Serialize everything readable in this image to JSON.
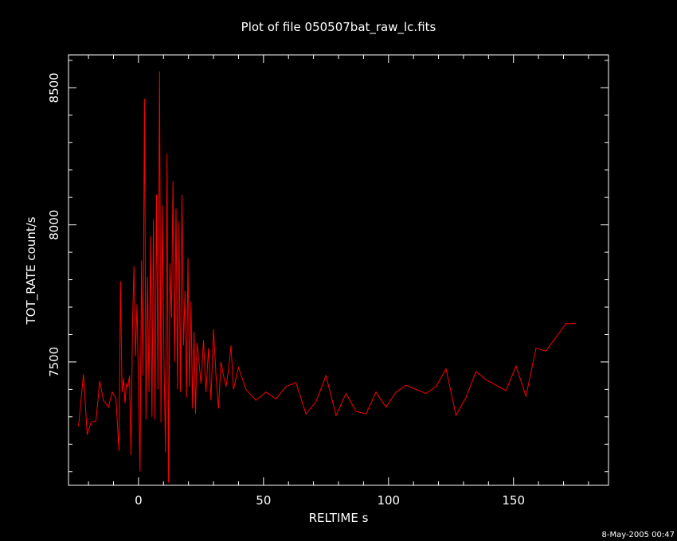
{
  "chart_data": {
    "type": "line",
    "title": "Plot of file 050507bat_raw_lc.fits",
    "xlabel": "RELTIME   s",
    "ylabel": "TOT_RATE   count/s",
    "footer": "8-May-2005 00:47",
    "xlim": [
      -28,
      188
    ],
    "ylim": [
      7050,
      8620
    ],
    "xticks_major": [
      0,
      50,
      100,
      150
    ],
    "xticks_major_labels": [
      "0",
      "50",
      "100",
      "150"
    ],
    "xticks_minor_step": 10,
    "yticks_major": [
      7500,
      8000,
      8500
    ],
    "yticks_major_labels": [
      "7500",
      "8000",
      "8500"
    ],
    "yticks_minor_step": 100,
    "grid": false,
    "legend": "none",
    "colors": {
      "background": "#000000",
      "axes": "#ffffff",
      "series": "#ff0000"
    },
    "series": [
      {
        "x": [
          -24,
          -22,
          -20.5,
          -19,
          -17,
          -15.5,
          -14,
          -12,
          -10.5,
          -9,
          -7.8,
          -7.2,
          -6.6,
          -6,
          -5.4,
          -4.8,
          -4.2,
          -3.6,
          -3,
          -2.4,
          -1.8,
          -1.2,
          -0.6,
          0,
          0.6,
          1.2,
          1.8,
          2.4,
          3,
          3.6,
          4.2,
          4.8,
          5.4,
          6,
          6.6,
          7.2,
          7.8,
          8.4,
          9,
          9.6,
          10.2,
          10.8,
          11.4,
          12,
          12.6,
          13.2,
          13.8,
          14.4,
          15,
          15.6,
          16.2,
          16.8,
          17.4,
          18,
          18.6,
          19.2,
          19.8,
          20.4,
          21,
          21.6,
          22.2,
          22.8,
          23.4,
          24,
          25,
          26,
          27,
          28,
          29,
          30,
          31,
          32,
          33,
          34,
          35,
          36,
          37,
          38,
          40,
          43,
          47,
          51,
          55,
          59,
          63,
          67,
          71,
          75,
          79,
          83,
          87,
          91,
          95,
          99,
          103,
          107,
          111,
          115,
          119,
          123,
          127,
          131,
          135,
          139,
          143,
          147,
          151,
          155,
          159,
          163,
          167,
          171,
          175
        ],
        "y": [
          7265,
          7455,
          7235,
          7280,
          7285,
          7430,
          7360,
          7335,
          7390,
          7365,
          7175,
          7795,
          7390,
          7440,
          7350,
          7420,
          7410,
          7450,
          7160,
          7640,
          7850,
          7520,
          7710,
          7410,
          7100,
          7870,
          7450,
          8460,
          7290,
          7810,
          7390,
          7960,
          7300,
          8020,
          7290,
          8110,
          7400,
          8560,
          7280,
          8070,
          7500,
          7170,
          8260,
          7060,
          7860,
          7660,
          8160,
          7500,
          8060,
          7400,
          8010,
          7390,
          8110,
          7560,
          7760,
          7370,
          7880,
          7410,
          7720,
          7330,
          7610,
          7310,
          7570,
          7520,
          7420,
          7580,
          7390,
          7550,
          7360,
          7620,
          7450,
          7330,
          7500,
          7450,
          7410,
          7470,
          7560,
          7400,
          7480,
          7400,
          7360,
          7390,
          7365,
          7410,
          7425,
          7310,
          7355,
          7450,
          7305,
          7385,
          7320,
          7310,
          7390,
          7335,
          7390,
          7415,
          7400,
          7385,
          7410,
          7475,
          7305,
          7370,
          7465,
          7435,
          7415,
          7395,
          7485,
          7375,
          7550,
          7540,
          7590,
          7640,
          7640
        ]
      }
    ]
  }
}
